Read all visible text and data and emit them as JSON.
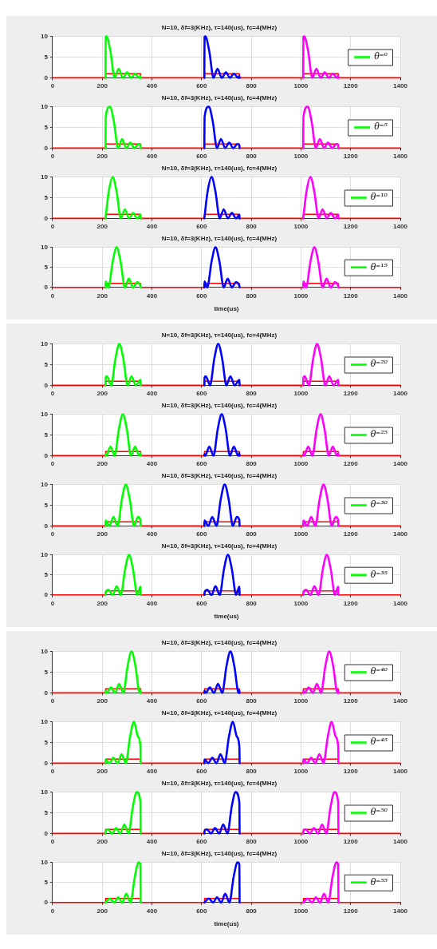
{
  "chart_data": [
    {
      "type": "line",
      "title": "N=10, δf=3(KHz), τ=140(us), fc=4(MHz)",
      "xlim": [
        0,
        1400
      ],
      "xticks": [
        0,
        200,
        400,
        600,
        800,
        1000,
        1200,
        1400
      ],
      "ylim": [
        0,
        10
      ],
      "yticks": [
        0,
        5,
        10
      ],
      "grid": true,
      "legend": "right",
      "series": [
        {
          "name": "θ⁼⁰",
          "color": "#00ff00",
          "x": [
            213,
            214,
            217,
            233,
            250,
            266,
            283,
            300,
            316,
            332,
            349,
            354,
            355
          ],
          "values": [
            0,
            9.9,
            10,
            6.4,
            0,
            2.2,
            0,
            1.3,
            0,
            1,
            0,
            0.4,
            0
          ]
        },
        {
          "color": "#0000ff",
          "x": [
            611,
            612,
            615,
            631,
            648,
            664,
            681,
            698,
            714,
            730,
            747,
            752,
            753
          ],
          "values": [
            0,
            9.9,
            10,
            6.4,
            0,
            2.2,
            0,
            1.3,
            0,
            1,
            0,
            0.4,
            0
          ]
        },
        {
          "color": "#ff00ff",
          "x": [
            1009,
            1010,
            1013,
            1029,
            1046,
            1062,
            1079,
            1096,
            1112,
            1128,
            1145,
            1150,
            1151
          ],
          "values": [
            0,
            9.9,
            10,
            6.4,
            0,
            2.2,
            0,
            1.3,
            0,
            1,
            0,
            0.4,
            0
          ]
        },
        {
          "type": "step",
          "color": "#ff0000",
          "x": [
            0,
            214,
            354,
            612,
            752,
            1010,
            1150,
            1400
          ],
          "values": [
            0,
            1,
            0,
            1,
            0,
            1,
            0,
            0
          ]
        }
      ]
    },
    {
      "type": "line",
      "title": "N=10, δf=3(KHz), τ=140(us), fc=4(MHz)",
      "xlim": [
        0,
        1400
      ],
      "xticks": [
        0,
        200,
        400,
        600,
        800,
        1000,
        1200,
        1400
      ],
      "ylim": [
        0,
        10
      ],
      "yticks": [
        0,
        5,
        10
      ],
      "grid": true,
      "legend": "right",
      "series": [
        {
          "name": "θ⁼⁵",
          "color": "#00ff00",
          "x": [
            213,
            214,
            231,
            247,
            264,
            280,
            297,
            313,
            330,
            346,
            354,
            355
          ],
          "values": [
            0,
            7.5,
            10,
            6.4,
            0,
            2.2,
            0,
            1.3,
            0,
            1,
            0.7,
            0
          ]
        },
        {
          "color": "#0000ff",
          "x": [
            611,
            612,
            629,
            645,
            662,
            678,
            695,
            711,
            728,
            744,
            752,
            753
          ],
          "values": [
            0,
            7.5,
            10,
            6.4,
            0,
            2.2,
            0,
            1.3,
            0,
            1,
            0.7,
            0
          ]
        },
        {
          "color": "#ff00ff",
          "x": [
            1009,
            1010,
            1027,
            1043,
            1060,
            1076,
            1093,
            1109,
            1126,
            1142,
            1150,
            1151
          ],
          "values": [
            0,
            7.5,
            10,
            6.4,
            0,
            2.2,
            0,
            1.3,
            0,
            1,
            0.7,
            0
          ]
        },
        {
          "type": "step",
          "color": "#ff0000",
          "x": [
            0,
            214,
            354,
            612,
            752,
            1010,
            1150,
            1400
          ],
          "values": [
            0,
            1,
            0,
            1,
            0,
            1,
            0,
            0
          ]
        }
      ]
    },
    {
      "type": "line",
      "title": "N=10, δf=3(KHz), τ=140(us), fc=4(MHz)",
      "xlim": [
        0,
        1400
      ],
      "xticks": [
        0,
        200,
        400,
        600,
        800,
        1000,
        1200,
        1400
      ],
      "ylim": [
        0,
        10
      ],
      "yticks": [
        0,
        5,
        10
      ],
      "grid": true,
      "legend": "right",
      "series": [
        {
          "name": "θ⁼¹⁰",
          "color": "#00ff00",
          "x": [
            213,
            214,
            226,
            242,
            258,
            275,
            291,
            308,
            324,
            341,
            354,
            355
          ],
          "values": [
            0,
            0.5,
            6.4,
            10,
            6.4,
            0,
            2.2,
            0,
            1.3,
            0,
            0.9,
            0
          ]
        },
        {
          "color": "#0000ff",
          "x": [
            611,
            612,
            624,
            640,
            656,
            673,
            689,
            706,
            722,
            739,
            752,
            753
          ],
          "values": [
            0,
            0.5,
            6.4,
            10,
            6.4,
            0,
            2.2,
            0,
            1.3,
            0,
            0.9,
            0
          ]
        },
        {
          "color": "#ff00ff",
          "x": [
            1009,
            1010,
            1022,
            1038,
            1054,
            1071,
            1087,
            1104,
            1120,
            1137,
            1150,
            1151
          ],
          "values": [
            0,
            0.5,
            6.4,
            10,
            6.4,
            0,
            2.2,
            0,
            1.3,
            0,
            0.9,
            0
          ]
        },
        {
          "type": "step",
          "color": "#ff0000",
          "x": [
            0,
            214,
            354,
            612,
            752,
            1010,
            1150,
            1400
          ],
          "values": [
            0,
            1,
            0,
            1,
            0,
            1,
            0,
            0
          ]
        }
      ]
    },
    {
      "type": "line",
      "title": "N=10, δf=3(KHz), τ=140(us), fc=4(MHz)",
      "xlabel": "time(us)",
      "xlim": [
        0,
        1400
      ],
      "xticks": [
        0,
        200,
        400,
        600,
        800,
        1000,
        1200,
        1400
      ],
      "ylim": [
        0,
        10
      ],
      "yticks": [
        0,
        5,
        10
      ],
      "grid": true,
      "legend": "right",
      "series": [
        {
          "name": "θ⁼¹⁵",
          "color": "#00ff00",
          "x": [
            213,
            214,
            225,
            242,
            258,
            274,
            291,
            307,
            324,
            340,
            354,
            355
          ],
          "values": [
            0,
            1.5,
            0,
            6.4,
            10,
            6.4,
            0,
            2.2,
            0,
            1.3,
            0.4,
            0
          ]
        },
        {
          "color": "#0000ff",
          "x": [
            611,
            612,
            623,
            640,
            656,
            672,
            689,
            705,
            722,
            738,
            752,
            753
          ],
          "values": [
            0,
            1.5,
            0,
            6.4,
            10,
            6.4,
            0,
            2.2,
            0,
            1.3,
            0.4,
            0
          ]
        },
        {
          "color": "#ff00ff",
          "x": [
            1009,
            1010,
            1021,
            1038,
            1054,
            1070,
            1087,
            1103,
            1120,
            1136,
            1150,
            1151
          ],
          "values": [
            0,
            1.5,
            0,
            6.4,
            10,
            6.4,
            0,
            2.2,
            0,
            1.3,
            0.4,
            0
          ]
        },
        {
          "type": "step",
          "color": "#ff0000",
          "x": [
            0,
            214,
            354,
            612,
            752,
            1010,
            1150,
            1400
          ],
          "values": [
            0,
            1,
            0,
            1,
            0,
            1,
            0,
            0
          ]
        }
      ]
    },
    {
      "type": "line",
      "title": "N=10, δf=3(KHz), τ=140(us), fc=4(MHz)",
      "xlim": [
        0,
        1400
      ],
      "xticks": [
        0,
        200,
        400,
        600,
        800,
        1000,
        1200,
        1400
      ],
      "ylim": [
        0,
        10
      ],
      "yticks": [
        0,
        5,
        10
      ],
      "grid": true,
      "legend": "right",
      "series": [
        {
          "name": "θ⁼²⁰",
          "color": "#00ff00",
          "x": [
            213,
            214,
            219,
            236,
            253,
            269,
            285,
            302,
            318,
            335,
            354,
            355
          ],
          "values": [
            0,
            1.9,
            2.2,
            0,
            6.4,
            10,
            6.4,
            0,
            2.2,
            0,
            1.3,
            0
          ]
        },
        {
          "color": "#0000ff",
          "x": [
            611,
            612,
            617,
            634,
            651,
            667,
            683,
            700,
            716,
            733,
            752,
            753
          ],
          "values": [
            0,
            1.9,
            2.2,
            0,
            6.4,
            10,
            6.4,
            0,
            2.2,
            0,
            1.3,
            0
          ]
        },
        {
          "color": "#ff00ff",
          "x": [
            1009,
            1010,
            1015,
            1032,
            1049,
            1065,
            1081,
            1098,
            1114,
            1131,
            1150,
            1151
          ],
          "values": [
            0,
            1.9,
            2.2,
            0,
            6.4,
            10,
            6.4,
            0,
            2.2,
            0,
            1.3,
            0
          ]
        },
        {
          "type": "step",
          "color": "#ff0000",
          "x": [
            0,
            214,
            354,
            612,
            752,
            1010,
            1150,
            1400
          ],
          "values": [
            0,
            1,
            0,
            1,
            0,
            1,
            0,
            0
          ]
        }
      ]
    },
    {
      "type": "line",
      "title": "N=10, δf=3(KHz), τ=140(us), fc=4(MHz)",
      "xlim": [
        0,
        1400
      ],
      "xticks": [
        0,
        200,
        400,
        600,
        800,
        1000,
        1200,
        1400
      ],
      "ylim": [
        0,
        10
      ],
      "yticks": [
        0,
        5,
        10
      ],
      "grid": true,
      "legend": "right",
      "series": [
        {
          "name": "θ⁼²⁵",
          "color": "#00ff00",
          "x": [
            213,
            214,
            217,
            233,
            250,
            267,
            283,
            299,
            316,
            332,
            349,
            354,
            355
          ],
          "values": [
            0,
            0.4,
            0,
            2.2,
            0,
            6.4,
            10,
            6.4,
            0,
            2.2,
            0,
            0.6,
            0
          ]
        },
        {
          "color": "#0000ff",
          "x": [
            611,
            612,
            615,
            631,
            648,
            665,
            681,
            697,
            714,
            730,
            747,
            752,
            753
          ],
          "values": [
            0,
            0.4,
            0,
            2.2,
            0,
            6.4,
            10,
            6.4,
            0,
            2.2,
            0,
            0.6,
            0
          ]
        },
        {
          "color": "#ff00ff",
          "x": [
            1009,
            1010,
            1013,
            1029,
            1046,
            1063,
            1079,
            1095,
            1112,
            1128,
            1145,
            1150,
            1151
          ],
          "values": [
            0,
            0.4,
            0,
            2.2,
            0,
            6.4,
            10,
            6.4,
            0,
            2.2,
            0,
            0.6,
            0
          ]
        },
        {
          "type": "step",
          "color": "#ff0000",
          "x": [
            0,
            214,
            354,
            612,
            752,
            1010,
            1150,
            1400
          ],
          "values": [
            0,
            1,
            0,
            1,
            0,
            1,
            0,
            0
          ]
        }
      ]
    },
    {
      "type": "line",
      "title": "N=10, δf=3(KHz), τ=140(us), fc=4(MHz)",
      "xlim": [
        0,
        1400
      ],
      "xticks": [
        0,
        200,
        400,
        600,
        800,
        1000,
        1200,
        1400
      ],
      "ylim": [
        0,
        10
      ],
      "yticks": [
        0,
        5,
        10
      ],
      "grid": true,
      "legend": "right",
      "series": [
        {
          "name": "θ⁼³⁰",
          "color": "#00ff00",
          "x": [
            213,
            214,
            229,
            245,
            262,
            279,
            295,
            311,
            328,
            344,
            354,
            355
          ],
          "values": [
            0,
            1.3,
            0,
            2.2,
            0,
            6.4,
            10,
            6.4,
            0,
            2.2,
            1.4,
            0
          ]
        },
        {
          "color": "#0000ff",
          "x": [
            611,
            612,
            627,
            643,
            660,
            677,
            693,
            709,
            726,
            742,
            752,
            753
          ],
          "values": [
            0,
            1.3,
            0,
            2.2,
            0,
            6.4,
            10,
            6.4,
            0,
            2.2,
            1.4,
            0
          ]
        },
        {
          "color": "#ff00ff",
          "x": [
            1009,
            1010,
            1025,
            1041,
            1058,
            1075,
            1091,
            1107,
            1124,
            1140,
            1150,
            1151
          ],
          "values": [
            0,
            1.3,
            0,
            2.2,
            0,
            6.4,
            10,
            6.4,
            0,
            2.2,
            1.4,
            0
          ]
        },
        {
          "type": "step",
          "color": "#ff0000",
          "x": [
            0,
            214,
            354,
            612,
            752,
            1010,
            1150,
            1400
          ],
          "values": [
            0,
            1,
            0,
            1,
            0,
            1,
            0,
            0
          ]
        }
      ]
    },
    {
      "type": "line",
      "title": "N=10, δf=3(KHz), τ=140(us), fc=4(MHz)",
      "xlabel": "time(us)",
      "xlim": [
        0,
        1400
      ],
      "xticks": [
        0,
        200,
        400,
        600,
        800,
        1000,
        1200,
        1400
      ],
      "ylim": [
        0,
        10
      ],
      "yticks": [
        0,
        5,
        10
      ],
      "grid": true,
      "legend": "right",
      "series": [
        {
          "name": "θ⁼³⁵",
          "color": "#00ff00",
          "x": [
            213,
            214,
            225,
            242,
            258,
            275,
            292,
            308,
            324,
            341,
            354,
            355
          ],
          "values": [
            0,
            0.6,
            1.3,
            0,
            2.2,
            0,
            6.4,
            10,
            6.4,
            0,
            2.1,
            0
          ]
        },
        {
          "color": "#0000ff",
          "x": [
            611,
            612,
            623,
            640,
            656,
            673,
            690,
            706,
            722,
            739,
            752,
            753
          ],
          "values": [
            0,
            0.6,
            1.3,
            0,
            2.2,
            0,
            6.4,
            10,
            6.4,
            0,
            2.1,
            0
          ]
        },
        {
          "color": "#ff00ff",
          "x": [
            1009,
            1010,
            1021,
            1038,
            1054,
            1071,
            1088,
            1104,
            1120,
            1137,
            1150,
            1151
          ],
          "values": [
            0,
            0.6,
            1.3,
            0,
            2.2,
            0,
            6.4,
            10,
            6.4,
            0,
            2.1,
            0
          ]
        },
        {
          "type": "step",
          "color": "#ff0000",
          "x": [
            0,
            214,
            354,
            612,
            752,
            1010,
            1150,
            1400
          ],
          "values": [
            0,
            1,
            0,
            1,
            0,
            1,
            0,
            0
          ]
        }
      ]
    },
    {
      "type": "line",
      "title": "N=10, δf=3(KHz), τ=140(us), fc=4(MHz)",
      "xlim": [
        0,
        1400
      ],
      "xticks": [
        0,
        200,
        400,
        600,
        800,
        1000,
        1200,
        1400
      ],
      "ylim": [
        0,
        10
      ],
      "yticks": [
        0,
        5,
        10
      ],
      "grid": true,
      "legend": "right",
      "series": [
        {
          "name": "θ⁼⁴⁰",
          "color": "#00ff00",
          "x": [
            213,
            214,
            219,
            235,
            252,
            268,
            285,
            302,
            318,
            334,
            351,
            354,
            355
          ],
          "values": [
            0,
            0.5,
            0,
            1.3,
            0,
            2.2,
            0,
            6.4,
            10,
            6.4,
            0,
            0.6,
            0
          ]
        },
        {
          "color": "#0000ff",
          "x": [
            611,
            612,
            617,
            633,
            650,
            666,
            683,
            700,
            716,
            732,
            749,
            752,
            753
          ],
          "values": [
            0,
            0.5,
            0,
            1.3,
            0,
            2.2,
            0,
            6.4,
            10,
            6.4,
            0,
            0.6,
            0
          ]
        },
        {
          "color": "#ff00ff",
          "x": [
            1009,
            1010,
            1015,
            1031,
            1048,
            1064,
            1081,
            1098,
            1114,
            1130,
            1147,
            1150,
            1151
          ],
          "values": [
            0,
            0.5,
            0,
            1.3,
            0,
            2.2,
            0,
            6.4,
            10,
            6.4,
            0,
            0.6,
            0
          ]
        },
        {
          "type": "step",
          "color": "#ff0000",
          "x": [
            0,
            214,
            354,
            612,
            752,
            1010,
            1150,
            1400
          ],
          "values": [
            0,
            1,
            0,
            1,
            0,
            1,
            0,
            0
          ]
        }
      ]
    },
    {
      "type": "line",
      "title": "N=10, δf=3(KHz), τ=140(us), fc=4(MHz)",
      "xlim": [
        0,
        1400
      ],
      "xticks": [
        0,
        200,
        400,
        600,
        800,
        1000,
        1200,
        1400
      ],
      "ylim": [
        0,
        10
      ],
      "yticks": [
        0,
        5,
        10
      ],
      "grid": true,
      "legend": "right",
      "series": [
        {
          "name": "θ⁼⁴⁵",
          "color": "#00ff00",
          "x": [
            213,
            214,
            229,
            245,
            262,
            278,
            295,
            312,
            328,
            344,
            354,
            355
          ],
          "values": [
            0,
            0.9,
            0,
            1.3,
            0,
            2.2,
            0,
            6.4,
            10,
            6.4,
            4,
            0
          ]
        },
        {
          "color": "#0000ff",
          "x": [
            611,
            612,
            627,
            643,
            660,
            676,
            693,
            710,
            726,
            742,
            752,
            753
          ],
          "values": [
            0,
            0.9,
            0,
            1.3,
            0,
            2.2,
            0,
            6.4,
            10,
            6.4,
            4,
            0
          ]
        },
        {
          "color": "#ff00ff",
          "x": [
            1009,
            1010,
            1025,
            1041,
            1058,
            1074,
            1091,
            1108,
            1124,
            1140,
            1150,
            1151
          ],
          "values": [
            0,
            0.9,
            0,
            1.3,
            0,
            2.2,
            0,
            6.4,
            10,
            6.4,
            4,
            0
          ]
        },
        {
          "type": "step",
          "color": "#ff0000",
          "x": [
            0,
            214,
            354,
            612,
            752,
            1010,
            1150,
            1400
          ],
          "values": [
            0,
            1,
            0,
            1,
            0,
            1,
            0,
            0
          ]
        }
      ]
    },
    {
      "type": "line",
      "title": "N=10, δf=3(KHz), τ=140(us), fc=4(MHz)",
      "xlim": [
        0,
        1400
      ],
      "xticks": [
        0,
        200,
        400,
        600,
        800,
        1000,
        1200,
        1400
      ],
      "ylim": [
        0,
        10
      ],
      "yticks": [
        0,
        5,
        10
      ],
      "grid": true,
      "legend": "right",
      "series": [
        {
          "name": "θ⁼⁵⁰",
          "color": "#00ff00",
          "x": [
            213,
            214,
            223,
            240,
            256,
            273,
            289,
            306,
            323,
            339,
            354,
            355
          ],
          "values": [
            0,
            0.6,
            1,
            0,
            1.3,
            0,
            2.2,
            0,
            6.4,
            10,
            7.5,
            0
          ]
        },
        {
          "color": "#0000ff",
          "x": [
            611,
            612,
            621,
            638,
            654,
            671,
            687,
            704,
            721,
            737,
            752,
            753
          ],
          "values": [
            0,
            0.6,
            1,
            0,
            1.3,
            0,
            2.2,
            0,
            6.4,
            10,
            7.5,
            0
          ]
        },
        {
          "color": "#ff00ff",
          "x": [
            1009,
            1010,
            1019,
            1036,
            1052,
            1069,
            1085,
            1102,
            1119,
            1135,
            1150,
            1151
          ],
          "values": [
            0,
            0.6,
            1,
            0,
            1.3,
            0,
            2.2,
            0,
            6.4,
            10,
            7.5,
            0
          ]
        },
        {
          "type": "step",
          "color": "#ff0000",
          "x": [
            0,
            214,
            354,
            612,
            752,
            1010,
            1150,
            1400
          ],
          "values": [
            0,
            1,
            0,
            1,
            0,
            1,
            0,
            0
          ]
        }
      ]
    },
    {
      "type": "line",
      "title": "N=10, δf=3(KHz), τ=140(us), fc=4(MHz)",
      "xlabel": "time(us)",
      "xlim": [
        0,
        1400
      ],
      "xticks": [
        0,
        200,
        400,
        600,
        800,
        1000,
        1200,
        1400
      ],
      "ylim": [
        0,
        10
      ],
      "yticks": [
        0,
        5,
        10
      ],
      "grid": true,
      "legend": "right",
      "series": [
        {
          "name": "θ⁼⁵⁵",
          "color": "#00ff00",
          "x": [
            214,
            231,
            248,
            264,
            281,
            297,
            314,
            331,
            347,
            354,
            355
          ],
          "values": [
            0,
            1,
            0,
            1.3,
            0,
            2.2,
            0,
            6.4,
            10,
            9.5,
            0
          ]
        },
        {
          "color": "#0000ff",
          "x": [
            612,
            629,
            646,
            662,
            679,
            695,
            712,
            729,
            745,
            752,
            753
          ],
          "values": [
            0,
            1,
            0,
            1.3,
            0,
            2.2,
            0,
            6.4,
            10,
            9.5,
            0
          ]
        },
        {
          "color": "#ff00ff",
          "x": [
            1010,
            1027,
            1044,
            1060,
            1077,
            1093,
            1110,
            1127,
            1143,
            1150,
            1151
          ],
          "values": [
            0,
            1,
            0,
            1.3,
            0,
            2.2,
            0,
            6.4,
            10,
            9.5,
            0
          ]
        },
        {
          "type": "step",
          "color": "#ff0000",
          "x": [
            0,
            214,
            354,
            612,
            752,
            1010,
            1150,
            1400
          ],
          "values": [
            0,
            1,
            0,
            1,
            0,
            1,
            0,
            0
          ]
        }
      ]
    }
  ]
}
